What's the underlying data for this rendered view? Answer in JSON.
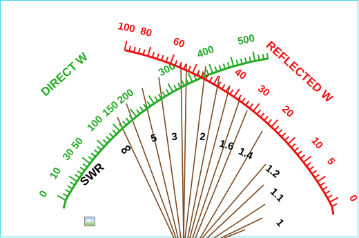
{
  "direct_scale": {
    "title": "DIRECT W",
    "labels": [
      "0",
      "10",
      "30",
      "50",
      "100",
      "150",
      "200",
      "300",
      "400",
      "500"
    ],
    "color": "#22aa22"
  },
  "reflected_scale": {
    "title": "REFLECTED W",
    "labels": [
      "100",
      "80",
      "60",
      "40",
      "30",
      "20",
      "10",
      "5",
      "0"
    ],
    "color": "#ee1111"
  },
  "swr_scale": {
    "title": "SWR",
    "labels": [
      "∞",
      "5",
      "3",
      "2",
      "1.6",
      "1.4",
      "1.2",
      "1.1",
      "1"
    ],
    "line_color": "#7a4a22",
    "text_color": "#000000"
  },
  "frame_color": "#44d8e8",
  "icons": [
    "image-thumbnail-icon"
  ]
}
